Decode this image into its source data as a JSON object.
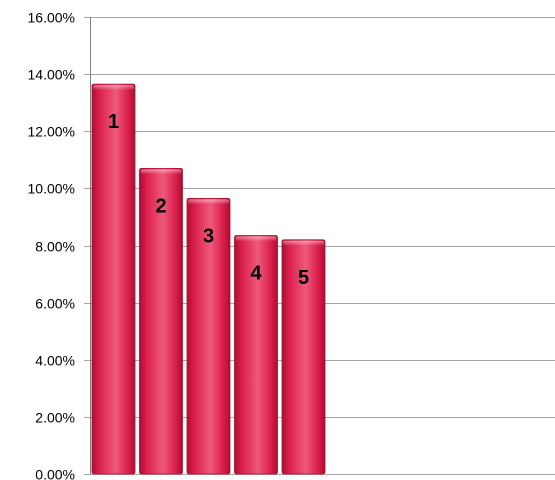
{
  "chart_data": {
    "type": "bar",
    "categories": [
      "1",
      "2",
      "3",
      "4",
      "5"
    ],
    "values": [
      13.65,
      10.7,
      9.65,
      8.35,
      8.2
    ],
    "data_labels": [
      "1",
      "2",
      "3",
      "4",
      "5"
    ],
    "y_tick_labels": [
      "0.00%",
      "2.00%",
      "4.00%",
      "6.00%",
      "8.00%",
      "10.00%",
      "12.00%",
      "14.00%",
      "16.00%"
    ],
    "y_ticks": [
      0,
      2,
      4,
      6,
      8,
      10,
      12,
      14,
      16
    ],
    "ylim": [
      0,
      16
    ],
    "title": "",
    "xlabel": "",
    "ylabel": "",
    "grid": true,
    "legend": "none",
    "colors": {
      "bar": "#d91c4b",
      "bar_highlight": "#ee5a7c",
      "bar_shadow": "#a8102f",
      "grid": "#a6a6a6",
      "axis": "#7f7f7f"
    }
  }
}
